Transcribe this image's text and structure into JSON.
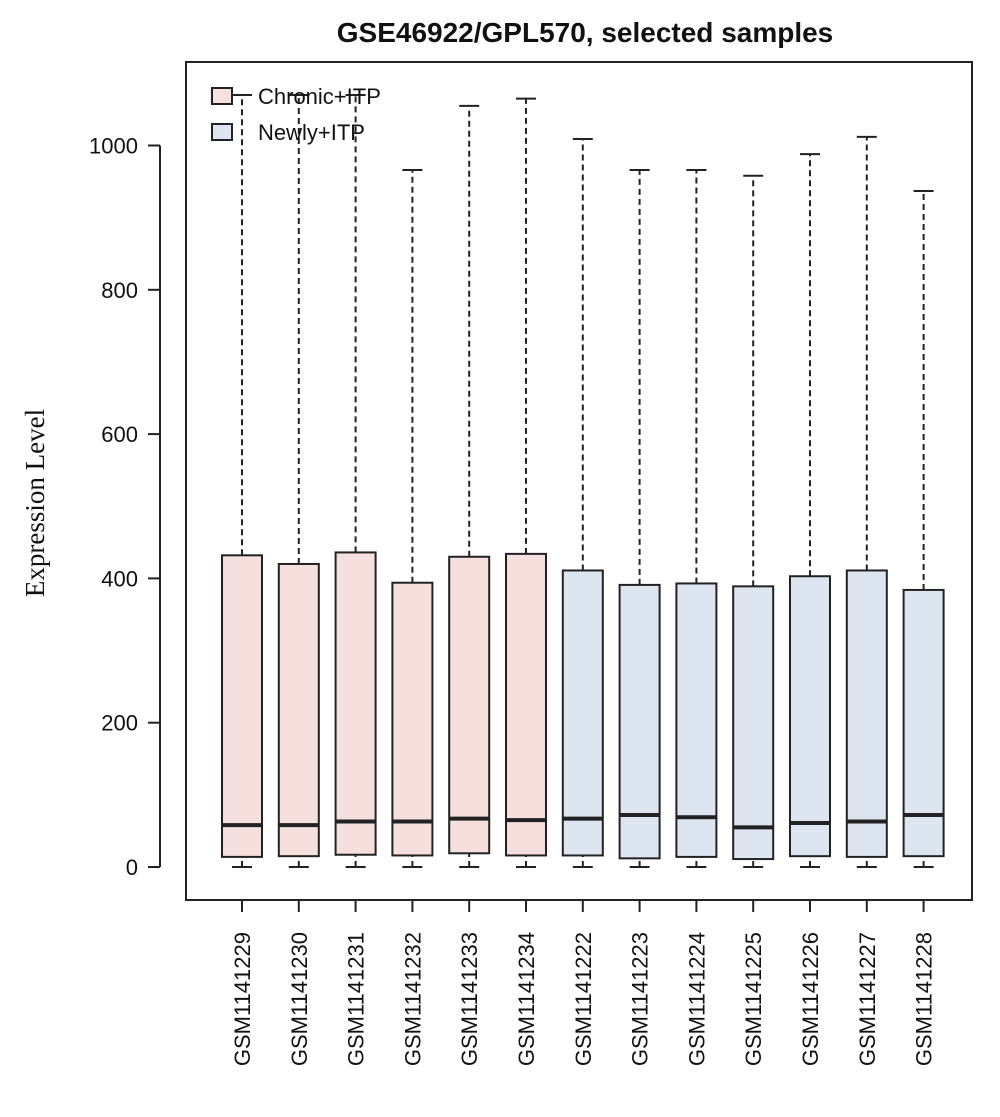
{
  "chart_data": {
    "type": "boxplot",
    "title": "GSE46922/GPL570, selected samples",
    "xlabel": "",
    "ylabel": "Expression Level",
    "ylim": [
      0,
      1100
    ],
    "yticks": [
      0,
      200,
      400,
      600,
      800,
      1000
    ],
    "grid": false,
    "legend_position": "top-left",
    "groups": [
      {
        "name": "Chronic+ITP",
        "color": "#f5e0dd"
      },
      {
        "name": "Newly+ITP",
        "color": "#dde6f0"
      }
    ],
    "samples": [
      {
        "id": "GSM1141229",
        "group": 0,
        "min": 0,
        "q1": 14,
        "median": 58,
        "q3": 432,
        "max": 1070
      },
      {
        "id": "GSM1141230",
        "group": 0,
        "min": 0,
        "q1": 15,
        "median": 58,
        "q3": 420,
        "max": 1070
      },
      {
        "id": "GSM1141231",
        "group": 0,
        "min": 0,
        "q1": 17,
        "median": 63,
        "q3": 436,
        "max": 1070
      },
      {
        "id": "GSM1141232",
        "group": 0,
        "min": 0,
        "q1": 16,
        "median": 63,
        "q3": 394,
        "max": 966
      },
      {
        "id": "GSM1141233",
        "group": 0,
        "min": 0,
        "q1": 19,
        "median": 67,
        "q3": 430,
        "max": 1055
      },
      {
        "id": "GSM1141234",
        "group": 0,
        "min": 0,
        "q1": 16,
        "median": 65,
        "q3": 434,
        "max": 1065
      },
      {
        "id": "GSM1141222",
        "group": 1,
        "min": 0,
        "q1": 16,
        "median": 67,
        "q3": 411,
        "max": 1009
      },
      {
        "id": "GSM1141223",
        "group": 1,
        "min": 0,
        "q1": 12,
        "median": 72,
        "q3": 391,
        "max": 966
      },
      {
        "id": "GSM1141224",
        "group": 1,
        "min": 0,
        "q1": 14,
        "median": 69,
        "q3": 393,
        "max": 966
      },
      {
        "id": "GSM1141225",
        "group": 1,
        "min": 0,
        "q1": 11,
        "median": 55,
        "q3": 389,
        "max": 958
      },
      {
        "id": "GSM1141226",
        "group": 1,
        "min": 0,
        "q1": 15,
        "median": 61,
        "q3": 403,
        "max": 988
      },
      {
        "id": "GSM1141227",
        "group": 1,
        "min": 0,
        "q1": 14,
        "median": 63,
        "q3": 411,
        "max": 1012
      },
      {
        "id": "GSM1141228",
        "group": 1,
        "min": 0,
        "q1": 15,
        "median": 72,
        "q3": 384,
        "max": 937
      }
    ]
  }
}
